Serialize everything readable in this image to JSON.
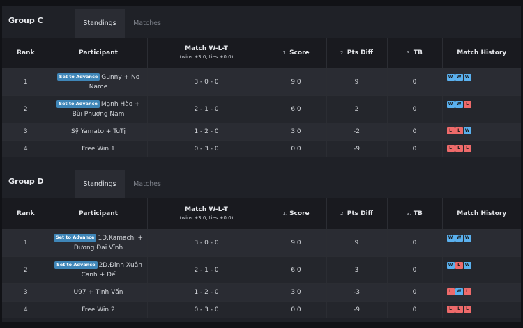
{
  "headers": {
    "rank": "Rank",
    "participant": "Participant",
    "wlt": "Match W-L-T",
    "wlt_sub": "(wins +3.0, ties +0.0)",
    "score_num": "1.",
    "score": "Score",
    "pts_num": "2.",
    "pts": "Pts Diff",
    "tb_num": "3.",
    "tb": "TB",
    "history": "Match History"
  },
  "badge": "Set to Advance",
  "colors": {
    "win": "#5ab0ee",
    "loss": "#ee6a6a",
    "badge": "#3f86b8"
  },
  "groups": [
    {
      "title": "Group C",
      "tabs": [
        "Standings",
        "Matches"
      ],
      "rows": [
        {
          "rank": "1",
          "participant": "Gunny + No Name",
          "advance": true,
          "wlt": "3 - 0 - 0",
          "score": "9.0",
          "pts": "9",
          "tb": "0",
          "history": [
            "W",
            "W",
            "W"
          ]
        },
        {
          "rank": "2",
          "participant": "Mạnh Hào + Bùi Phương Nam",
          "advance": true,
          "wlt": "2 - 1 - 0",
          "score": "6.0",
          "pts": "2",
          "tb": "0",
          "history": [
            "W",
            "W",
            "L"
          ]
        },
        {
          "rank": "3",
          "participant": "Sỹ Yamato + TuTj",
          "advance": false,
          "wlt": "1 - 2 - 0",
          "score": "3.0",
          "pts": "-2",
          "tb": "0",
          "history": [
            "L",
            "L",
            "W"
          ]
        },
        {
          "rank": "4",
          "participant": "Free Win 1",
          "advance": false,
          "wlt": "0 - 3 - 0",
          "score": "0.0",
          "pts": "-9",
          "tb": "0",
          "history": [
            "L",
            "L",
            "L"
          ]
        }
      ]
    },
    {
      "title": "Group D",
      "tabs": [
        "Standings",
        "Matches"
      ],
      "rows": [
        {
          "rank": "1",
          "participant": "1D.Kamachi + Dương Đại Vĩnh",
          "advance": true,
          "wlt": "3 - 0 - 0",
          "score": "9.0",
          "pts": "9",
          "tb": "0",
          "history": [
            "W",
            "W",
            "W"
          ]
        },
        {
          "rank": "2",
          "participant": "2D.Đinh Xuân Canh + Để",
          "advance": true,
          "wlt": "2 - 1 - 0",
          "score": "6.0",
          "pts": "3",
          "tb": "0",
          "history": [
            "W",
            "L",
            "W"
          ]
        },
        {
          "rank": "3",
          "participant": "U97 + Tịnh Vấn",
          "advance": false,
          "wlt": "1 - 2 - 0",
          "score": "3.0",
          "pts": "-3",
          "tb": "0",
          "history": [
            "L",
            "W",
            "L"
          ]
        },
        {
          "rank": "4",
          "participant": "Free Win 2",
          "advance": false,
          "wlt": "0 - 3 - 0",
          "score": "0.0",
          "pts": "-9",
          "tb": "0",
          "history": [
            "L",
            "L",
            "L"
          ]
        }
      ]
    }
  ]
}
